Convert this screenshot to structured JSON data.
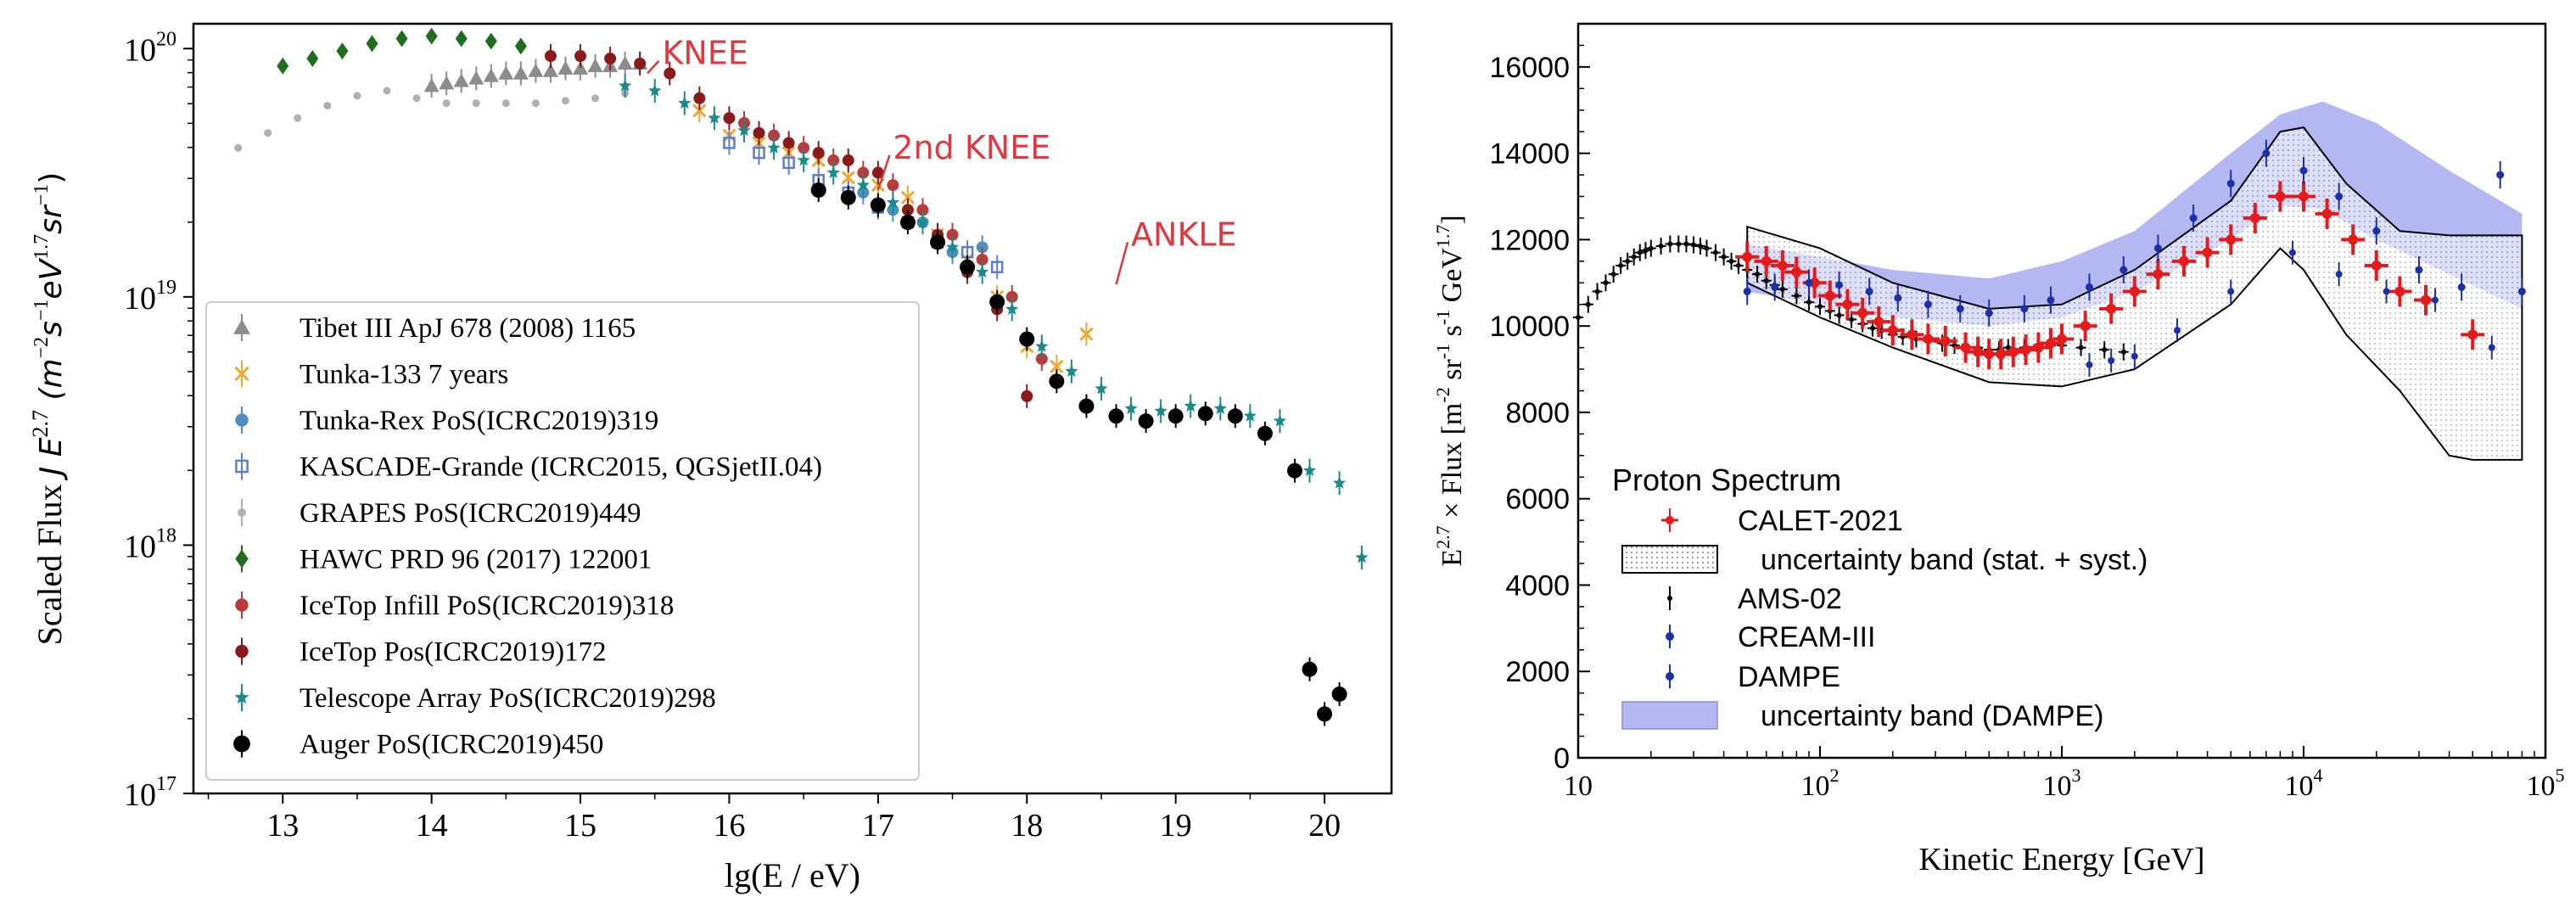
{
  "chart_data": [
    {
      "type": "scatter",
      "name": "all-particle cosmic ray spectrum",
      "xlabel": "lg(E / eV)",
      "ylabel": "Scaled Flux J E^{2.7} (m^{-2}s^{-1}eV^{1.7}sr^{-1})",
      "ylabel_parts": {
        "prefix": "Scaled Flux ",
        "j": "J E",
        "exp": "2.7",
        "units": " (m",
        "u1": "−2",
        "s": "s",
        "u2": "−1",
        "ev": "eV",
        "u3": "1.7",
        "sr": "sr",
        "u4": "−1",
        "close": ")"
      },
      "xlim": [
        12.4,
        20.45
      ],
      "ylog": true,
      "ylim_log10": [
        17.0,
        20.1
      ],
      "xticks": [
        "13",
        "14",
        "15",
        "16",
        "17",
        "18",
        "19",
        "20"
      ],
      "yticks": [
        {
          "base": "10",
          "exp": "17"
        },
        {
          "base": "10",
          "exp": "18"
        },
        {
          "base": "10",
          "exp": "19"
        },
        {
          "base": "10",
          "exp": "20"
        }
      ],
      "annotations": [
        {
          "text": "KNEE",
          "x": 15.55,
          "y_log10": 19.93
        },
        {
          "text": "2nd KNEE",
          "x": 17.1,
          "y_log10": 19.55
        },
        {
          "text": "ANKLE",
          "x": 18.7,
          "y_log10": 19.2
        }
      ],
      "series": [
        {
          "name": "Tibet III ApJ 678 (2008) 1165",
          "marker": "triangle",
          "color": "#8c8c8c",
          "x": [
            14.0,
            14.1,
            14.2,
            14.3,
            14.4,
            14.5,
            14.6,
            14.7,
            14.8,
            14.9,
            15.0,
            15.1,
            15.2,
            15.3,
            15.4
          ],
          "y": [
            19.85,
            19.86,
            19.87,
            19.88,
            19.89,
            19.9,
            19.9,
            19.91,
            19.91,
            19.92,
            19.92,
            19.93,
            19.93,
            19.94,
            19.94
          ]
        },
        {
          "name": "Tunka-133 7 years",
          "marker": "x",
          "color": "#f0a830",
          "x": [
            15.8,
            16.0,
            16.2,
            16.4,
            16.6,
            16.8,
            17.0,
            17.2,
            17.4,
            17.6,
            17.8,
            18.0,
            18.2,
            18.4
          ],
          "y": [
            19.75,
            19.65,
            19.62,
            19.58,
            19.55,
            19.48,
            19.45,
            19.4,
            19.25,
            19.15,
            19.0,
            18.8,
            18.72,
            18.85
          ]
        },
        {
          "name": "Tunka-Rex PoS(ICRC2019)319",
          "marker": "dot",
          "color": "#4f8fbf",
          "x": [
            16.9,
            17.1,
            17.3,
            17.5,
            17.7
          ],
          "y": [
            19.42,
            19.35,
            19.3,
            19.18,
            19.2
          ]
        },
        {
          "name": "KASCADE-Grande (ICRC2015, QGSjetII.04)",
          "marker": "square-open",
          "color": "#5a7fd0",
          "x": [
            16.0,
            16.2,
            16.4,
            16.6,
            16.8,
            17.0,
            17.2,
            17.4,
            17.6,
            17.8
          ],
          "y": [
            19.62,
            19.58,
            19.54,
            19.47,
            19.42,
            19.36,
            19.3,
            19.22,
            19.18,
            19.12
          ]
        },
        {
          "name": "GRAPES PoS(ICRC2019)449",
          "marker": "dot-small",
          "color": "#b0b0b0",
          "x": [
            12.7,
            12.9,
            13.1,
            13.3,
            13.5,
            13.7,
            13.9,
            14.1,
            14.3,
            14.5,
            14.7,
            14.9,
            15.1,
            15.3
          ],
          "y": [
            19.6,
            19.66,
            19.72,
            19.77,
            19.81,
            19.83,
            19.8,
            19.78,
            19.78,
            19.78,
            19.78,
            19.79,
            19.8,
            19.82
          ]
        },
        {
          "name": "HAWC PRD 96 (2017) 122001",
          "marker": "diamond",
          "color": "#1f6e1f",
          "x": [
            13.0,
            13.2,
            13.4,
            13.6,
            13.8,
            14.0,
            14.2,
            14.4,
            14.6
          ],
          "y": [
            19.93,
            19.96,
            19.99,
            20.02,
            20.04,
            20.05,
            20.04,
            20.03,
            20.01
          ]
        },
        {
          "name": "IceTop Infill PoS(ICRC2019)318",
          "marker": "dot",
          "color": "#b83c3c",
          "x": [
            16.1,
            16.3,
            16.5,
            16.7,
            16.9,
            17.1,
            17.3,
            17.5,
            17.7,
            17.9,
            18.1
          ],
          "y": [
            19.7,
            19.65,
            19.6,
            19.55,
            19.5,
            19.45,
            19.35,
            19.25,
            19.15,
            19.0,
            18.75
          ]
        },
        {
          "name": "IceTop Pos(ICRC2019)172",
          "marker": "dot",
          "color": "#8b1a1a",
          "x": [
            14.8,
            15.0,
            15.2,
            15.4,
            15.6,
            15.8,
            16.0,
            16.2,
            16.4,
            16.6,
            16.8,
            17.0,
            17.2,
            17.4,
            17.6,
            17.8,
            18.0
          ],
          "y": [
            19.97,
            19.97,
            19.96,
            19.94,
            19.9,
            19.8,
            19.72,
            19.66,
            19.62,
            19.58,
            19.55,
            19.5,
            19.35,
            19.25,
            19.1,
            18.95,
            18.6
          ]
        },
        {
          "name": "Telescope Array PoS(ICRC2019)298",
          "marker": "star",
          "color": "#1a8a8a",
          "x": [
            15.3,
            15.5,
            15.7,
            15.9,
            16.1,
            16.3,
            16.5,
            16.7,
            16.9,
            17.1,
            17.3,
            17.5,
            17.7,
            17.9,
            18.1,
            18.3,
            18.5,
            18.7,
            18.9,
            19.1,
            19.3,
            19.5,
            19.7,
            19.9,
            20.1,
            20.25
          ],
          "y": [
            19.85,
            19.83,
            19.78,
            19.72,
            19.67,
            19.6,
            19.55,
            19.5,
            19.45,
            19.38,
            19.3,
            19.2,
            19.1,
            18.95,
            18.8,
            18.7,
            18.63,
            18.55,
            18.54,
            18.56,
            18.55,
            18.52,
            18.5,
            18.3,
            18.25,
            17.95
          ]
        },
        {
          "name": "Auger PoS(ICRC2019)450",
          "marker": "dot-large",
          "color": "#000000",
          "x": [
            16.6,
            16.8,
            17.0,
            17.2,
            17.4,
            17.6,
            17.8,
            18.0,
            18.2,
            18.4,
            18.6,
            18.8,
            19.0,
            19.2,
            19.4,
            19.6,
            19.8,
            19.9,
            20.0,
            20.1
          ],
          "y": [
            19.43,
            19.4,
            19.37,
            19.3,
            19.22,
            19.12,
            18.98,
            18.83,
            18.66,
            18.56,
            18.52,
            18.5,
            18.52,
            18.53,
            18.52,
            18.45,
            18.3,
            17.5,
            17.32,
            17.4
          ]
        }
      ]
    },
    {
      "type": "scatter",
      "name": "proton spectrum",
      "xlabel": "Kinetic Energy [GeV]",
      "ylabel": "E^{2.7} × Flux [m^{-2} sr^{-1} s^{-1} GeV^{1.7}]",
      "ylabel_parts": {
        "e": "E",
        "e_exp": "2.7",
        "mid": " × Flux [m",
        "u1": "-2",
        "sr": " sr",
        "u2": "-1",
        "s": " s",
        "u3": "-1",
        "gev": " GeV",
        "u4": "1.7",
        "close": "]"
      },
      "xlog": true,
      "xlim": [
        10,
        100000
      ],
      "ylim": [
        0,
        17000
      ],
      "xticks": [
        {
          "base": "10",
          "exp": ""
        },
        {
          "base": "10",
          "exp": "2"
        },
        {
          "base": "10",
          "exp": "3"
        },
        {
          "base": "10",
          "exp": "4"
        },
        {
          "base": "10",
          "exp": "5"
        }
      ],
      "yticks": [
        "0",
        "2000",
        "4000",
        "6000",
        "8000",
        "10000",
        "12000",
        "14000",
        "16000"
      ],
      "legend_title": "Proton Spectrum",
      "legend": [
        {
          "label": "CALET-2021",
          "kind": "marker",
          "color": "#e41a1c"
        },
        {
          "label": "uncertainty band (stat. + syst.)",
          "kind": "box-dotted",
          "color": "#000000"
        },
        {
          "label": "AMS-02",
          "kind": "marker",
          "color": "#000000"
        },
        {
          "label": "CREAM-III",
          "kind": "marker",
          "color": "#1a2fa8"
        },
        {
          "label": "DAMPE",
          "kind": "marker",
          "color": "#1a2fa8"
        },
        {
          "label": "uncertainty band (DAMPE)",
          "kind": "box-filled",
          "color": "#b4b8f2"
        }
      ],
      "series": [
        {
          "name": "AMS-02",
          "color": "#000000",
          "x": [
            10,
            11,
            12,
            13,
            14,
            15,
            16,
            17,
            18,
            19,
            20,
            22,
            24,
            26,
            28,
            30,
            32,
            34,
            37,
            40,
            43,
            46,
            50,
            55,
            60,
            65,
            70,
            80,
            90,
            100,
            110,
            120,
            135,
            150,
            165,
            180,
            200,
            220,
            250,
            280,
            320,
            360,
            400,
            450,
            500,
            550,
            600,
            700,
            800,
            900,
            1000,
            1200,
            1500,
            1800
          ],
          "y": [
            10200,
            10500,
            10800,
            11000,
            11200,
            11400,
            11500,
            11600,
            11700,
            11750,
            11800,
            11850,
            11900,
            11900,
            11900,
            11880,
            11850,
            11800,
            11700,
            11600,
            11500,
            11400,
            11300,
            11200,
            11050,
            10950,
            10850,
            10700,
            10550,
            10450,
            10350,
            10250,
            10150,
            10050,
            9950,
            9900,
            9800,
            9750,
            9700,
            9650,
            9600,
            9550,
            9500,
            9500,
            9450,
            9450,
            9500,
            9500,
            9550,
            9550,
            9550,
            9500,
            9450,
            9400
          ]
        },
        {
          "name": "CALET-2021",
          "color": "#e41a1c",
          "x": [
            50,
            60,
            70,
            80,
            95,
            110,
            130,
            150,
            175,
            200,
            240,
            280,
            330,
            400,
            450,
            500,
            560,
            630,
            710,
            800,
            900,
            1000,
            1250,
            1600,
            2000,
            2500,
            3200,
            4000,
            5000,
            6300,
            8000,
            10000,
            12500,
            16000,
            20000,
            25000,
            32000,
            50000
          ],
          "y": [
            11600,
            11500,
            11400,
            11250,
            11000,
            10700,
            10500,
            10300,
            10100,
            9900,
            9800,
            9700,
            9650,
            9500,
            9400,
            9350,
            9350,
            9400,
            9450,
            9500,
            9600,
            9700,
            10000,
            10400,
            10800,
            11200,
            11500,
            11700,
            12000,
            12500,
            13000,
            13000,
            12600,
            12000,
            11400,
            10800,
            10600,
            9800
          ]
        },
        {
          "name": "CREAM-III",
          "color": "#1a2fa8",
          "x": [
            1300,
            1600,
            2000,
            3000,
            5000,
            9000,
            14000,
            22000,
            35000,
            60000
          ],
          "y": [
            9100,
            9200,
            9300,
            9900,
            10800,
            11700,
            11200,
            10800,
            10600,
            9500
          ]
        },
        {
          "name": "DAMPE",
          "color": "#1a2fa8",
          "x": [
            50,
            65,
            90,
            120,
            160,
            210,
            280,
            380,
            500,
            700,
            900,
            1300,
            1800,
            2500,
            3500,
            5000,
            7000,
            10000,
            14000,
            20000,
            30000,
            45000,
            65000,
            80000
          ],
          "y": [
            10800,
            10900,
            11000,
            10950,
            10800,
            10650,
            10500,
            10400,
            10300,
            10400,
            10600,
            10900,
            11300,
            11800,
            12500,
            13300,
            14000,
            13600,
            13000,
            12200,
            11300,
            10900,
            13500,
            10800
          ]
        }
      ],
      "bands": [
        {
          "name": "uncertainty band (DAMPE)",
          "color": "#b4b8f2",
          "x": [
            50,
            100,
            200,
            500,
            1000,
            2000,
            5000,
            8000,
            12000,
            20000,
            40000,
            80000
          ],
          "lower": [
            10800,
            10500,
            10200,
            10000,
            10200,
            10800,
            12000,
            12800,
            12700,
            12000,
            11200,
            10400
          ],
          "upper": [
            11900,
            11600,
            11300,
            11100,
            11500,
            12200,
            14000,
            14900,
            15200,
            14700,
            13600,
            12600
          ]
        },
        {
          "name": "uncertainty band (stat. + syst.)",
          "color": "#000000",
          "x": [
            50,
            100,
            200,
            500,
            1000,
            2000,
            5000,
            8000,
            10000,
            15000,
            25000,
            40000,
            50000,
            80000
          ],
          "lower": [
            11000,
            10200,
            9500,
            8700,
            8600,
            9000,
            10500,
            11800,
            11300,
            9800,
            8500,
            7000,
            6900,
            6900
          ],
          "upper": [
            12300,
            11800,
            11000,
            10400,
            10500,
            11300,
            12900,
            14500,
            14600,
            13300,
            12200,
            12100,
            12100,
            12100
          ]
        }
      ]
    }
  ]
}
